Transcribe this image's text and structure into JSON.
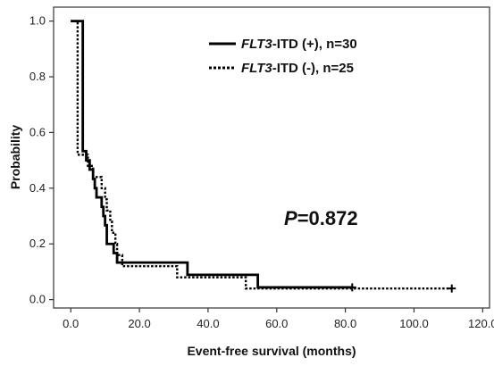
{
  "chart_data": {
    "type": "line",
    "title": "",
    "xlabel": "Event-free survival (months)",
    "ylabel": "Probability",
    "xlim": [
      -5,
      122
    ],
    "ylim": [
      -0.03,
      1.05
    ],
    "x_ticks": [
      0,
      20,
      40,
      60,
      80,
      100,
      120
    ],
    "x_tick_labels": [
      "0.0",
      "20.0",
      "40.0",
      "60.0",
      "80.0",
      "100.0",
      "120.0"
    ],
    "y_ticks": [
      0.0,
      0.2,
      0.4,
      0.6,
      0.8,
      1.0
    ],
    "y_tick_labels": [
      "0.0",
      "0.2",
      "0.4",
      "0.6",
      "0.8",
      "1.0"
    ],
    "grid": false,
    "legend_position": "top-right",
    "annotation": {
      "italic": "P",
      "rest": "=0.872"
    },
    "series": [
      {
        "name_italic": "FLT3",
        "name_rest": "-ITD (+), n=30",
        "style": "solid",
        "color": "#000000",
        "steps": [
          [
            0,
            1.0
          ],
          [
            3.5,
            0.533
          ],
          [
            4.5,
            0.5
          ],
          [
            5.5,
            0.467
          ],
          [
            6.5,
            0.433
          ],
          [
            7,
            0.4
          ],
          [
            7.5,
            0.367
          ],
          [
            9,
            0.333
          ],
          [
            9.5,
            0.3
          ],
          [
            10,
            0.267
          ],
          [
            10.5,
            0.2
          ],
          [
            12.5,
            0.167
          ],
          [
            13.5,
            0.133
          ],
          [
            34,
            0.089
          ],
          [
            54.5,
            0.044
          ],
          [
            82,
            0.044
          ]
        ],
        "censored": [
          {
            "x": 82,
            "y": 0.044
          }
        ]
      },
      {
        "name_italic": "FLT3",
        "name_rest": "-ITD (-), n=25",
        "style": "dotted",
        "color": "#000000",
        "steps": [
          [
            0,
            1.0
          ],
          [
            2,
            0.52
          ],
          [
            5,
            0.48
          ],
          [
            6.5,
            0.44
          ],
          [
            9,
            0.4
          ],
          [
            10,
            0.36
          ],
          [
            10.5,
            0.32
          ],
          [
            11.5,
            0.28
          ],
          [
            12,
            0.24
          ],
          [
            13,
            0.2
          ],
          [
            13.5,
            0.16
          ],
          [
            15,
            0.12
          ],
          [
            31,
            0.08
          ],
          [
            51,
            0.04
          ],
          [
            111,
            0.04
          ]
        ],
        "censored": [
          {
            "x": 111,
            "y": 0.04
          }
        ]
      }
    ]
  }
}
